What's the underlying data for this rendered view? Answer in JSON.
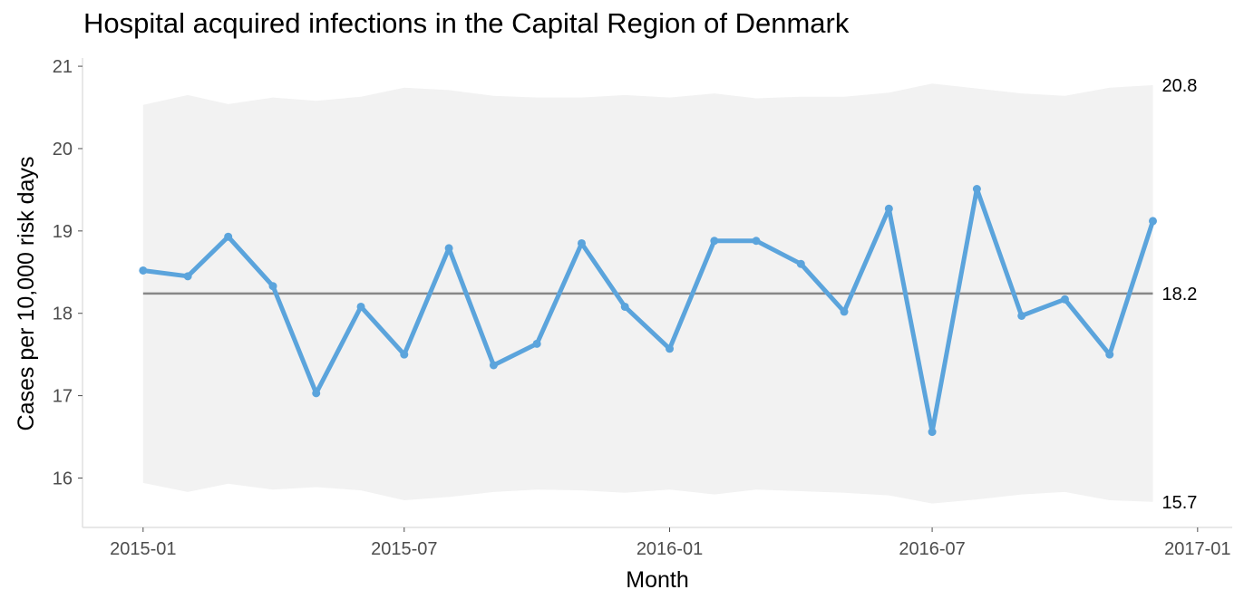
{
  "chart_data": {
    "type": "line",
    "title": "Hospital acquired infections in the Capital Region of Denmark",
    "xlabel": "Month",
    "ylabel": "Cases per 10,000 risk days",
    "x_ticks": [
      "2015-01",
      "2015-07",
      "2016-01",
      "2016-07",
      "2017-01"
    ],
    "y_ticks": [
      16,
      17,
      18,
      19,
      20,
      21
    ],
    "ylim": [
      15.4,
      21.1
    ],
    "xlim": [
      "2014-11-20",
      "2017-01-25"
    ],
    "x": [
      "2015-01-01",
      "2015-02-01",
      "2015-03-01",
      "2015-04-01",
      "2015-05-01",
      "2015-06-01",
      "2015-07-01",
      "2015-08-01",
      "2015-09-01",
      "2015-10-01",
      "2015-11-01",
      "2015-12-01",
      "2016-01-01",
      "2016-02-01",
      "2016-03-01",
      "2016-04-01",
      "2016-05-01",
      "2016-06-01",
      "2016-07-01",
      "2016-08-01",
      "2016-09-01",
      "2016-10-01",
      "2016-11-01",
      "2016-12-01"
    ],
    "values": [
      18.52,
      18.45,
      18.93,
      18.33,
      17.03,
      18.08,
      17.5,
      18.79,
      17.37,
      17.63,
      18.85,
      18.08,
      17.57,
      18.88,
      18.88,
      18.6,
      18.02,
      19.27,
      16.56,
      19.51,
      17.97,
      18.17,
      17.5,
      19.12
    ],
    "upper_limit": [
      20.53,
      20.65,
      20.54,
      20.62,
      20.58,
      20.63,
      20.74,
      20.71,
      20.64,
      20.62,
      20.62,
      20.65,
      20.62,
      20.67,
      20.61,
      20.63,
      20.63,
      20.68,
      20.79,
      20.73,
      20.67,
      20.64,
      20.74,
      20.77
    ],
    "lower_limit": [
      15.94,
      15.83,
      15.93,
      15.86,
      15.89,
      15.85,
      15.73,
      15.77,
      15.83,
      15.86,
      15.85,
      15.82,
      15.86,
      15.8,
      15.86,
      15.84,
      15.82,
      15.79,
      15.69,
      15.74,
      15.8,
      15.83,
      15.73,
      15.71
    ],
    "center_line": 18.24,
    "end_labels": {
      "upper": "20.8",
      "center": "18.2",
      "lower": "15.7"
    },
    "colors": {
      "line": "#5ba4dc",
      "band": "#f2f2f2",
      "center": "#888888",
      "axis": "#e0e0e0"
    },
    "grid": false
  }
}
